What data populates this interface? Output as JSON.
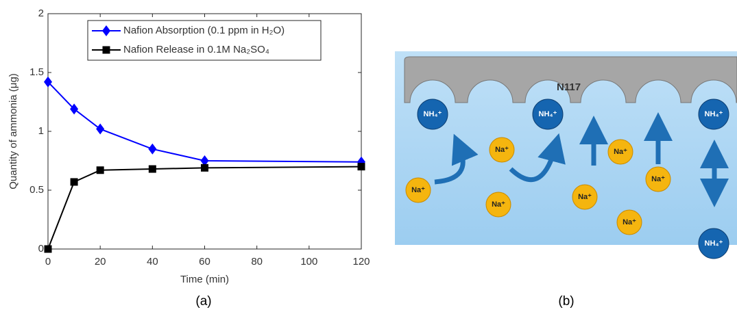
{
  "chart_data": {
    "type": "line",
    "xlabel": "Time (min)",
    "ylabel": "Quantity of ammonia  (μg)",
    "x": [
      0,
      10,
      20,
      40,
      60,
      120
    ],
    "xlim": [
      0,
      120
    ],
    "xticks": [
      0,
      20,
      40,
      60,
      80,
      100,
      120
    ],
    "ylim": [
      0,
      2
    ],
    "yticks": [
      0,
      0.5,
      1,
      1.5,
      2
    ],
    "legend": "upper center",
    "series": [
      {
        "name": "Nafion Absorption (0.1 ppm in H₂O)",
        "color": "#0000ff",
        "marker": "diamond",
        "values": [
          1.42,
          1.19,
          1.02,
          0.85,
          0.75,
          0.74
        ]
      },
      {
        "name": "Nafion Release in 0.1M Na₂SO₄",
        "color": "#000000",
        "marker": "square",
        "values": [
          0,
          0.57,
          0.67,
          0.68,
          0.69,
          0.7
        ]
      }
    ]
  },
  "diagram": {
    "membrane_label": "N117",
    "ions": [
      "NH₄⁺",
      "NH₄⁺",
      "NH₄⁺",
      "NH₄⁺",
      "Na⁺",
      "Na⁺",
      "Na⁺",
      "Na⁺",
      "Na⁺",
      "Na⁺",
      "Na⁺"
    ]
  },
  "panel_labels": [
    "(a)",
    "(b)"
  ]
}
